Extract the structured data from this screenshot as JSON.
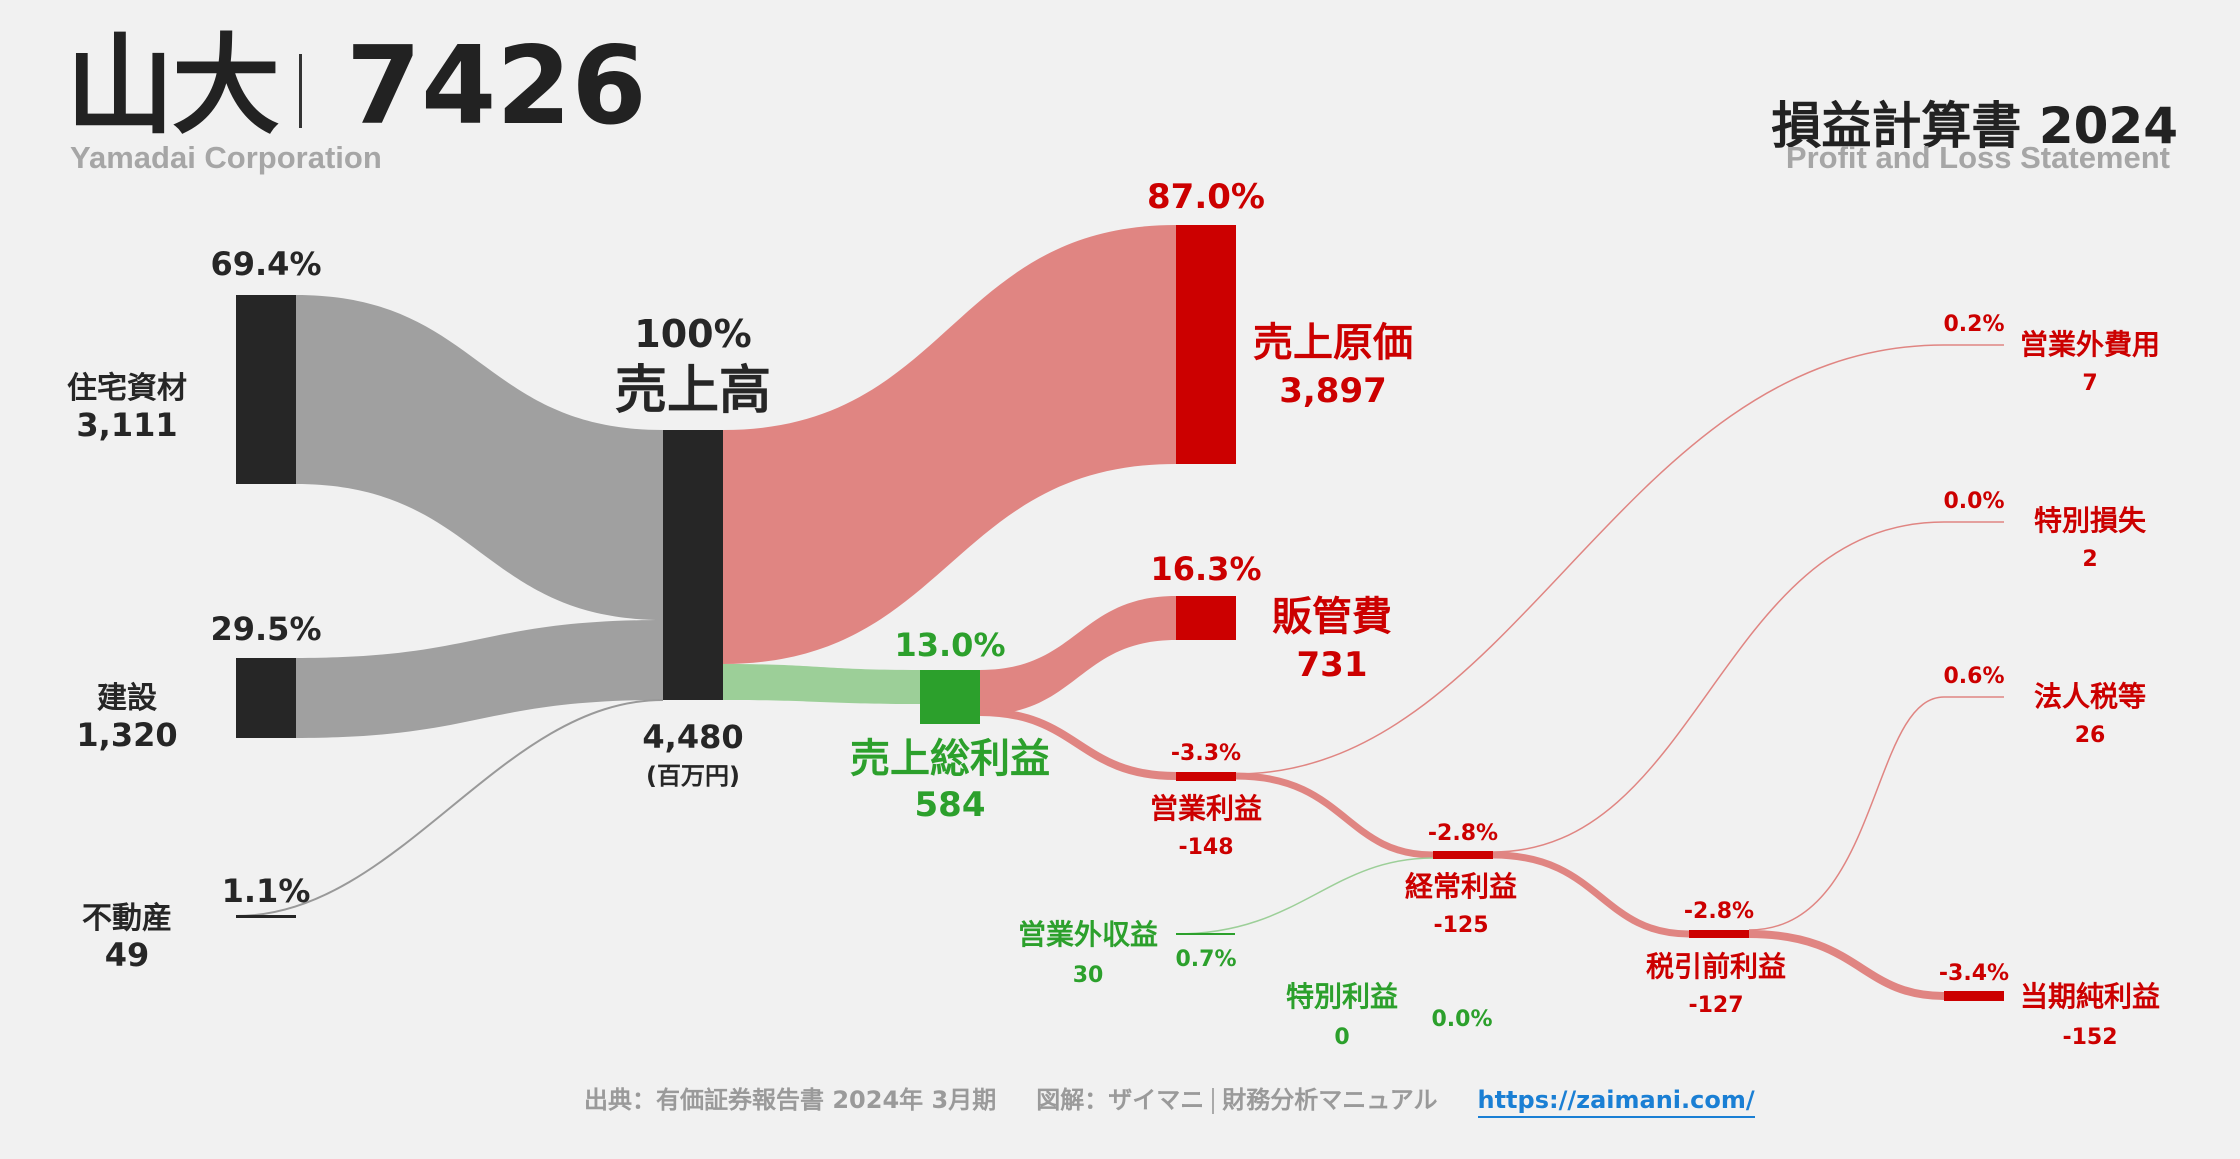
{
  "header": {
    "company": "山大",
    "code": "7426",
    "company_en": "Yamadai Corporation",
    "statement_title": "損益計算書 2024",
    "statement_title_en": "Profit and Loss Statement"
  },
  "colors": {
    "dark": "#262626",
    "gray_flow": "#a0a0a0",
    "red": "#cc0000",
    "red_flow": "#e08582",
    "green": "#2ca02c",
    "green_flow": "#9ccf98",
    "link": "#1a7fd4"
  },
  "chart_data": {
    "type": "sankey",
    "unit": "(百万円)",
    "nodes": [
      {
        "id": "housing",
        "name": "住宅資材",
        "value": "3,111",
        "pct": "69.4%"
      },
      {
        "id": "construction",
        "name": "建設",
        "value": "1,320",
        "pct": "29.5%"
      },
      {
        "id": "realestate",
        "name": "不動産",
        "value": "49",
        "pct": "1.1%"
      },
      {
        "id": "revenue",
        "name": "売上高",
        "value": "4,480",
        "pct": "100%"
      },
      {
        "id": "cogs",
        "name": "売上原価",
        "value": "3,897",
        "pct": "87.0%"
      },
      {
        "id": "gross",
        "name": "売上総利益",
        "value": "584",
        "pct": "13.0%"
      },
      {
        "id": "sga",
        "name": "販管費",
        "value": "731",
        "pct": "16.3%"
      },
      {
        "id": "operating",
        "name": "営業利益",
        "value": "-148",
        "pct": "-3.3%"
      },
      {
        "id": "nonop_income",
        "name": "営業外収益",
        "value": "30",
        "pct": "0.7%"
      },
      {
        "id": "nonop_expense",
        "name": "営業外費用",
        "value": "7",
        "pct": "0.2%"
      },
      {
        "id": "ordinary",
        "name": "経常利益",
        "value": "-125",
        "pct": "-2.8%"
      },
      {
        "id": "special_gain",
        "name": "特別利益",
        "value": "0",
        "pct": "0.0%"
      },
      {
        "id": "special_loss",
        "name": "特別損失",
        "value": "2",
        "pct": "0.0%"
      },
      {
        "id": "pretax",
        "name": "税引前利益",
        "value": "-127",
        "pct": "-2.8%"
      },
      {
        "id": "tax",
        "name": "法人税等",
        "value": "26",
        "pct": "0.6%"
      },
      {
        "id": "net",
        "name": "当期純利益",
        "value": "-152",
        "pct": "-3.4%"
      }
    ],
    "links": [
      {
        "source": "housing",
        "target": "revenue",
        "value": 3111
      },
      {
        "source": "construction",
        "target": "revenue",
        "value": 1320
      },
      {
        "source": "realestate",
        "target": "revenue",
        "value": 49
      },
      {
        "source": "revenue",
        "target": "cogs",
        "value": 3897
      },
      {
        "source": "revenue",
        "target": "gross",
        "value": 584
      },
      {
        "source": "gross",
        "target": "sga",
        "value": 731
      },
      {
        "source": "gross",
        "target": "operating",
        "value": -148
      },
      {
        "source": "operating",
        "target": "nonop_expense",
        "value": 7
      },
      {
        "source": "nonop_income",
        "target": "ordinary",
        "value": 30
      },
      {
        "source": "operating",
        "target": "ordinary",
        "value": -125
      },
      {
        "source": "ordinary",
        "target": "special_loss",
        "value": 2
      },
      {
        "source": "special_gain",
        "target": "pretax",
        "value": 0
      },
      {
        "source": "ordinary",
        "target": "pretax",
        "value": -127
      },
      {
        "source": "pretax",
        "target": "tax",
        "value": 26
      },
      {
        "source": "pretax",
        "target": "net",
        "value": -152
      }
    ]
  },
  "footer": {
    "source": "出典：有価証券報告書 2024年 3月期",
    "credit": "図解：ザイマニ",
    "site_name": "財務分析マニュアル",
    "url": "https://zaimani.com/"
  }
}
